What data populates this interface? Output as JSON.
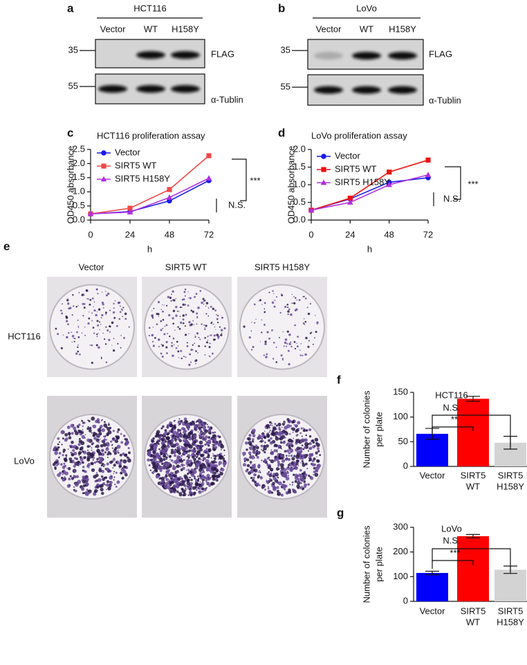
{
  "blots": [
    {
      "panel": "a",
      "cell_line": "HCT116",
      "lanes": [
        "Vector",
        "WT",
        "H158Y"
      ],
      "rows": [
        {
          "marker": "35",
          "label": "FLAG"
        },
        {
          "marker": "55",
          "label": "α-Tublin"
        }
      ]
    },
    {
      "panel": "b",
      "cell_line": "LoVo",
      "lanes": [
        "Vector",
        "WT",
        "H158Y"
      ],
      "rows": [
        {
          "marker": "35",
          "label": "FLAG"
        },
        {
          "marker": "55",
          "label": "α-Tublin"
        }
      ]
    }
  ],
  "colony": {
    "panel": "e",
    "columns": [
      "Vector",
      "SIRT5 WT",
      "SIRT5 H158Y"
    ],
    "rows": [
      "HCT116",
      "LoVo"
    ]
  },
  "chart_data": [
    {
      "type": "line",
      "panel": "c",
      "title": "HCT116 proliferation assay",
      "x_label": "h",
      "y_label": "OD450 absorbance",
      "x": [
        0,
        24,
        48,
        72
      ],
      "xlim": [
        0,
        72
      ],
      "xticks": [
        0,
        24,
        48,
        72
      ],
      "ylim": [
        0,
        2.5
      ],
      "yticks": [
        {
          "value": 0,
          "label": "0.0"
        },
        0.5,
        {
          "value": 1,
          "label": "1.0"
        },
        1.5,
        {
          "value": 2,
          "label": "2.0"
        },
        2.5
      ],
      "legend": "upper left",
      "series": [
        {
          "name": "Vector",
          "color": "#1a1ae6",
          "marker": "circle",
          "values": [
            0.22,
            0.3,
            0.68,
            1.4
          ]
        },
        {
          "name": "SIRT5 WT",
          "color": "#f04848",
          "marker": "square",
          "values": [
            0.22,
            0.42,
            1.08,
            2.28
          ]
        },
        {
          "name": "SIRT5 H158Y",
          "color": "#b030e0",
          "marker": "triangle",
          "values": [
            0.22,
            0.28,
            0.8,
            1.48
          ]
        }
      ],
      "annotations": [
        "***",
        "N.S."
      ]
    },
    {
      "type": "line",
      "panel": "d",
      "title": "LoVo proliferation assay",
      "x_label": "h",
      "y_label": "OD450 absorbance",
      "x": [
        0,
        24,
        48,
        72
      ],
      "xlim": [
        0,
        72
      ],
      "xticks": [
        0,
        24,
        48,
        72
      ],
      "ylim": [
        0,
        2
      ],
      "yticks": [
        {
          "value": 0,
          "label": "0.0"
        },
        0.5,
        {
          "value": 1,
          "label": "1.0"
        },
        1.5,
        {
          "value": 2,
          "label": "2.0"
        }
      ],
      "legend": "upper left",
      "series": [
        {
          "name": "Vector",
          "color": "#1a1ae6",
          "marker": "circle",
          "values": [
            0.28,
            0.6,
            1.07,
            1.2
          ]
        },
        {
          "name": "SIRT5 WT",
          "color": "#ee1111",
          "marker": "square",
          "values": [
            0.28,
            0.62,
            1.36,
            1.7
          ]
        },
        {
          "name": "SIRT5 H158Y",
          "color": "#b030e0",
          "marker": "triangle",
          "values": [
            0.28,
            0.5,
            1.0,
            1.28
          ]
        }
      ],
      "annotations": [
        "***",
        "N.S."
      ]
    },
    {
      "type": "bar",
      "panel": "f",
      "title": "HCT116",
      "y_label": [
        "Number of colonies",
        "per plate"
      ],
      "categories": [
        [
          "Vector"
        ],
        [
          "SIRT5",
          "WT"
        ],
        [
          "SIRT5",
          "H158Y"
        ]
      ],
      "values": [
        66,
        137,
        48
      ],
      "errors": [
        11,
        5,
        13
      ],
      "colors": [
        "#0000ff",
        "#ff0000",
        "#d3d3d3"
      ],
      "ylim": [
        0,
        150
      ],
      "yticks": [
        0,
        50,
        100,
        150
      ],
      "annotations": [
        "**",
        "N.S."
      ]
    },
    {
      "type": "bar",
      "panel": "g",
      "title": "LoVo",
      "y_label": [
        "Number of colonies",
        "per plate"
      ],
      "categories": [
        [
          "Vector"
        ],
        [
          "SIRT5",
          "WT"
        ],
        [
          "SIRT5",
          "H158Y"
        ]
      ],
      "values": [
        115,
        264,
        128
      ],
      "errors": [
        7,
        7,
        15
      ],
      "colors": [
        "#0000ff",
        "#ff0000",
        "#d3d3d3"
      ],
      "ylim": [
        0,
        300
      ],
      "yticks": [
        0,
        100,
        200,
        300
      ],
      "annotations": [
        "***",
        "N.S."
      ]
    }
  ]
}
